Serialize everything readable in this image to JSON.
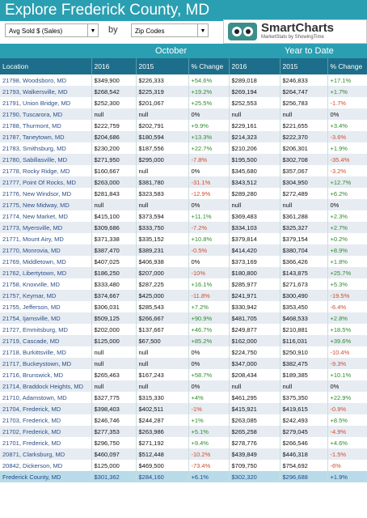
{
  "header": {
    "title": "Explore Frederick County, MD",
    "metric": "Avg Sold $ (Sales)",
    "by": "by",
    "grouping": "Zip Codes",
    "logo_title": "SmartCharts",
    "logo_subtitle": "MarketStats by ShowingTime"
  },
  "sections": [
    "October",
    "Year to Date"
  ],
  "table": {
    "columns": [
      "Location",
      "2016",
      "2015",
      "% Change",
      "2016",
      "2015",
      "% Change"
    ],
    "rows": [
      [
        "21798, Woodsboro, MD",
        "$349,900",
        "$226,333",
        "+54.6%",
        "$289,018",
        "$246,833",
        "+17.1%"
      ],
      [
        "21793, Walkersville, MD",
        "$268,542",
        "$225,319",
        "+19.2%",
        "$269,194",
        "$264,747",
        "+1.7%"
      ],
      [
        "21791, Union Bridge, MD",
        "$252,300",
        "$201,067",
        "+25.5%",
        "$252,553",
        "$256,783",
        "-1.7%"
      ],
      [
        "21790, Tuscarora, MD",
        "null",
        "null",
        "0%",
        "null",
        "null",
        "0%"
      ],
      [
        "21788, Thurmont, MD",
        "$222,759",
        "$202,791",
        "+9.9%",
        "$229,161",
        "$221,655",
        "+3.4%"
      ],
      [
        "21787, Taneytown, MD",
        "$204,686",
        "$180,594",
        "+13.3%",
        "$214,323",
        "$222,370",
        "-3.6%"
      ],
      [
        "21783, Smithsburg, MD",
        "$230,200",
        "$187,556",
        "+22.7%",
        "$210,206",
        "$206,301",
        "+1.9%"
      ],
      [
        "21780, Sabillasville, MD",
        "$271,950",
        "$295,000",
        "-7.8%",
        "$195,500",
        "$302,708",
        "-35.4%"
      ],
      [
        "21778, Rocky Ridge, MD",
        "$160,667",
        "null",
        "0%",
        "$345,680",
        "$357,067",
        "-3.2%"
      ],
      [
        "21777, Point Of Rocks, MD",
        "$263,000",
        "$381,780",
        "-31.1%",
        "$343,512",
        "$304,950",
        "+12.7%"
      ],
      [
        "21776, New Windsor, MD",
        "$281,843",
        "$323,583",
        "-12.9%",
        "$289,280",
        "$272,489",
        "+6.2%"
      ],
      [
        "21775, New Midway, MD",
        "null",
        "null",
        "0%",
        "null",
        "null",
        "0%"
      ],
      [
        "21774, New Market, MD",
        "$415,100",
        "$373,594",
        "+11.1%",
        "$369,483",
        "$361,288",
        "+2.3%"
      ],
      [
        "21773, Myersville, MD",
        "$309,686",
        "$333,750",
        "-7.2%",
        "$334,103",
        "$325,327",
        "+2.7%"
      ],
      [
        "21771, Mount Airy, MD",
        "$371,338",
        "$335,152",
        "+10.8%",
        "$379,814",
        "$379,154",
        "+0.2%"
      ],
      [
        "21770, Monrovia, MD",
        "$387,470",
        "$389,231",
        "-0.5%",
        "$414,420",
        "$380,704",
        "+8.9%"
      ],
      [
        "21769, Middletown, MD",
        "$407,025",
        "$406,938",
        "0%",
        "$373,169",
        "$366,426",
        "+1.8%"
      ],
      [
        "21762, Libertytown, MD",
        "$186,250",
        "$207,000",
        "-10%",
        "$180,800",
        "$143,875",
        "+25.7%"
      ],
      [
        "21758, Knoxville, MD",
        "$333,480",
        "$287,225",
        "+16.1%",
        "$285,977",
        "$271,673",
        "+5.3%"
      ],
      [
        "21757, Keymar, MD",
        "$374,667",
        "$425,000",
        "-11.8%",
        "$241,971",
        "$300,490",
        "-19.5%"
      ],
      [
        "21755, Jefferson, MD",
        "$306,031",
        "$285,543",
        "+7.2%",
        "$330,942",
        "$353,450",
        "-6.4%"
      ],
      [
        "21754, Ijamsville, MD",
        "$509,125",
        "$266,667",
        "+90.9%",
        "$481,705",
        "$468,533",
        "+2.8%"
      ],
      [
        "21727, Emmitsburg, MD",
        "$202,000",
        "$137,667",
        "+46.7%",
        "$249,877",
        "$210,881",
        "+18.5%"
      ],
      [
        "21719, Cascade, MD",
        "$125,000",
        "$67,500",
        "+85.2%",
        "$162,000",
        "$116,031",
        "+39.6%"
      ],
      [
        "21718, Burkittsville, MD",
        "null",
        "null",
        "0%",
        "$224,750",
        "$250,910",
        "-10.4%"
      ],
      [
        "21717, Buckeystown, MD",
        "null",
        "null",
        "0%",
        "$347,000",
        "$382,475",
        "-9.3%"
      ],
      [
        "21716, Brunswick, MD",
        "$265,463",
        "$167,243",
        "+58.7%",
        "$208,434",
        "$189,385",
        "+10.1%"
      ],
      [
        "21714, Braddock Heights, MD",
        "null",
        "null",
        "0%",
        "null",
        "null",
        "0%"
      ],
      [
        "21710, Adamstown, MD",
        "$327,775",
        "$315,330",
        "+4%",
        "$461,295",
        "$375,350",
        "+22.9%"
      ],
      [
        "21704, Frederick, MD",
        "$398,403",
        "$402,511",
        "-1%",
        "$415,921",
        "$419,615",
        "-0.9%"
      ],
      [
        "21703, Frederick, MD",
        "$246,746",
        "$244,287",
        "+1%",
        "$263,085",
        "$242,493",
        "+8.5%"
      ],
      [
        "21702, Frederick, MD",
        "$277,353",
        "$263,986",
        "+5.1%",
        "$265,258",
        "$279,045",
        "-4.9%"
      ],
      [
        "21701, Frederick, MD",
        "$296,750",
        "$271,192",
        "+9.4%",
        "$278,776",
        "$266,546",
        "+4.6%"
      ],
      [
        "20871, Clarksburg, MD",
        "$460,097",
        "$512,448",
        "-10.2%",
        "$439,849",
        "$446,318",
        "-1.5%"
      ],
      [
        "20842, Dickerson, MD",
        "$125,000",
        "$469,500",
        "-73.4%",
        "$709,750",
        "$754,692",
        "-6%"
      ]
    ],
    "total": [
      "Frederick County, MD",
      "$301,362",
      "$284,160",
      "+6.1%",
      "$302,320",
      "$296,688",
      "+1.9%"
    ]
  }
}
